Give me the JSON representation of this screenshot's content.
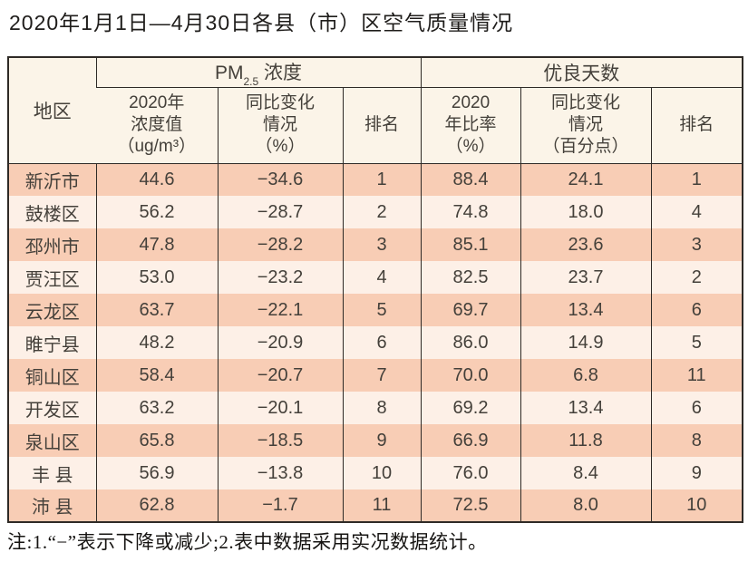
{
  "page": {
    "title": "2020年1月1日—4月30日各县（市）区空气质量情况",
    "note": "注:1.“−”表示下降或减少;2.表中数据采用实况数据统计。"
  },
  "colors": {
    "row_odd": "#f8cdb5",
    "row_even": "#fdf0e7",
    "header_bg": "#fbf4e8",
    "border": "#2e2a26",
    "text": "#44403a"
  },
  "table": {
    "header": {
      "region": "地区",
      "pm_prefix": "PM",
      "pm_sub": "2.5",
      "pm_suffix": " 浓度",
      "good_days": "优良天数",
      "pm_value": "2020年\n浓度值\n（ug/m³）",
      "pm_change": "同比变化\n情况\n（%）",
      "pm_rank": "排名",
      "gd_ratio": "2020\n年比率\n（%）",
      "gd_change": "同比变化\n情况\n（百分点）",
      "gd_rank": "排名"
    },
    "rows": [
      {
        "region": "新沂市",
        "pm_value": "44.6",
        "pm_change": "−34.6",
        "pm_rank": "1",
        "gd_ratio": "88.4",
        "gd_change": "24.1",
        "gd_rank": "1"
      },
      {
        "region": "鼓楼区",
        "pm_value": "56.2",
        "pm_change": "−28.7",
        "pm_rank": "2",
        "gd_ratio": "74.8",
        "gd_change": "18.0",
        "gd_rank": "4"
      },
      {
        "region": "邳州市",
        "pm_value": "47.8",
        "pm_change": "−28.2",
        "pm_rank": "3",
        "gd_ratio": "85.1",
        "gd_change": "23.6",
        "gd_rank": "3"
      },
      {
        "region": "贾汪区",
        "pm_value": "53.0",
        "pm_change": "−23.2",
        "pm_rank": "4",
        "gd_ratio": "82.5",
        "gd_change": "23.7",
        "gd_rank": "2"
      },
      {
        "region": "云龙区",
        "pm_value": "63.7",
        "pm_change": "−22.1",
        "pm_rank": "5",
        "gd_ratio": "69.7",
        "gd_change": "13.4",
        "gd_rank": "6"
      },
      {
        "region": "睢宁县",
        "pm_value": "48.2",
        "pm_change": "−20.9",
        "pm_rank": "6",
        "gd_ratio": "86.0",
        "gd_change": "14.9",
        "gd_rank": "5"
      },
      {
        "region": "铜山区",
        "pm_value": "58.4",
        "pm_change": "−20.7",
        "pm_rank": "7",
        "gd_ratio": "70.0",
        "gd_change": "6.8",
        "gd_rank": "11"
      },
      {
        "region": "开发区",
        "pm_value": "63.2",
        "pm_change": "−20.1",
        "pm_rank": "8",
        "gd_ratio": "69.2",
        "gd_change": "13.4",
        "gd_rank": "6"
      },
      {
        "region": "泉山区",
        "pm_value": "65.8",
        "pm_change": "−18.5",
        "pm_rank": "9",
        "gd_ratio": "66.9",
        "gd_change": "11.8",
        "gd_rank": "8"
      },
      {
        "region": "丰 县",
        "pm_value": "56.9",
        "pm_change": "−13.8",
        "pm_rank": "10",
        "gd_ratio": "76.0",
        "gd_change": "8.4",
        "gd_rank": "9"
      },
      {
        "region": "沛 县",
        "pm_value": "62.8",
        "pm_change": "−1.7",
        "pm_rank": "11",
        "gd_ratio": "72.5",
        "gd_change": "8.0",
        "gd_rank": "10"
      }
    ]
  }
}
